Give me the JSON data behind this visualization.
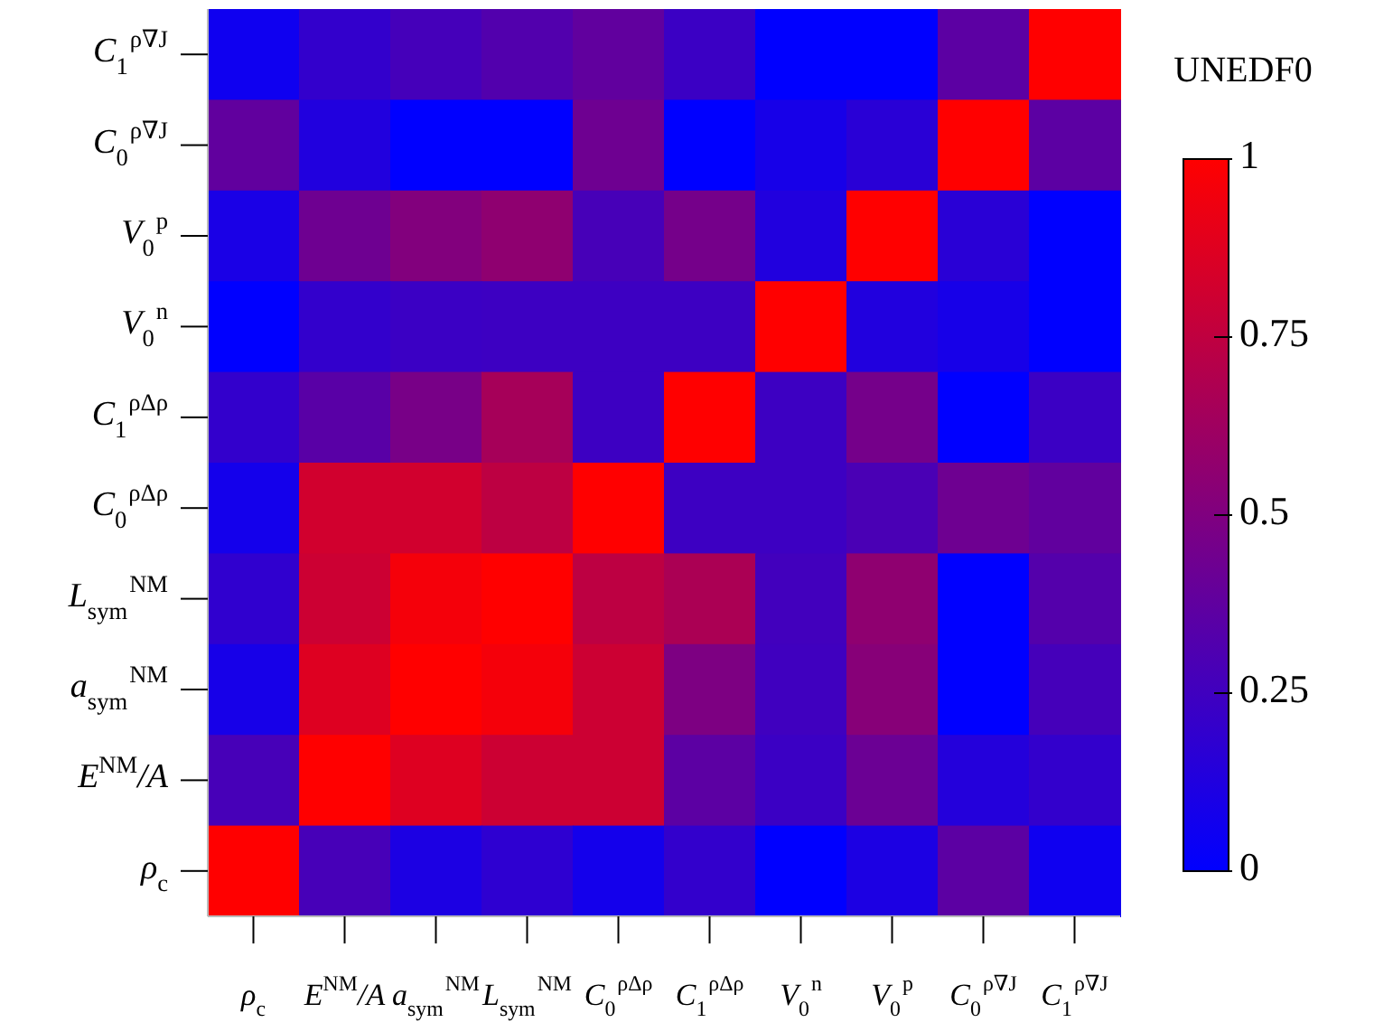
{
  "chart_data": {
    "type": "heatmap",
    "clabel": "UNEDF0",
    "categories": [
      "ρ$_{c}$",
      "E$^{NM}$/A",
      "a$_{sym}$$^{NM}$",
      "L$_{sym}$$^{NM}$",
      "C$_{0}$$^{ρΔρ}$",
      "C$_{1}$$^{ρΔρ}$",
      "V$_{0}$$^{n}$",
      "V$_{0}$$^{p}$",
      "C$_{0}$$^{ρ∇J}$",
      "C$_{1}$$^{ρ∇J}$"
    ],
    "y_categories": [
      "C$_{1}$$^{ρ∇J}$",
      "C$_{0}$$^{ρ∇J}$",
      "V$_{0}$$^{p}$",
      "V$_{0}$$^{n}$",
      "C$_{1}$$^{ρΔρ}$",
      "C$_{0}$$^{ρΔρ}$",
      "L$_{sym}$$^{NM}$",
      "a$_{sym}$$^{NM}$",
      "E$^{NM}$/A",
      "ρ$_{c}$"
    ],
    "cells": [
      [
        0.06,
        0.2,
        0.27,
        0.32,
        0.38,
        0.23,
        0,
        0,
        0.36,
        1
      ],
      [
        0.38,
        0.13,
        0,
        0,
        0.43,
        0,
        0.09,
        0.16,
        1,
        0.36
      ],
      [
        0.1,
        0.43,
        0.51,
        0.56,
        0.28,
        0.46,
        0.13,
        1,
        0.16,
        0
      ],
      [
        0,
        0.2,
        0.23,
        0.24,
        0.24,
        0.24,
        1,
        0.13,
        0.09,
        0
      ],
      [
        0.2,
        0.35,
        0.47,
        0.65,
        0.24,
        1,
        0.24,
        0.46,
        0,
        0.23
      ],
      [
        0.08,
        0.82,
        0.82,
        0.74,
        1,
        0.24,
        0.24,
        0.29,
        0.43,
        0.38
      ],
      [
        0.19,
        0.8,
        0.96,
        1,
        0.74,
        0.67,
        0.26,
        0.56,
        0,
        0.33
      ],
      [
        0.09,
        0.87,
        1,
        0.96,
        0.8,
        0.49,
        0.25,
        0.53,
        0,
        0.27
      ],
      [
        0.28,
        1,
        0.87,
        0.8,
        0.8,
        0.36,
        0.23,
        0.42,
        0.14,
        0.2
      ],
      [
        1,
        0.28,
        0.11,
        0.18,
        0.08,
        0.2,
        0,
        0.11,
        0.36,
        0.06
      ]
    ],
    "clim": [
      0,
      1
    ],
    "cticks": [
      0,
      0.25,
      0.5,
      0.75,
      1
    ]
  }
}
